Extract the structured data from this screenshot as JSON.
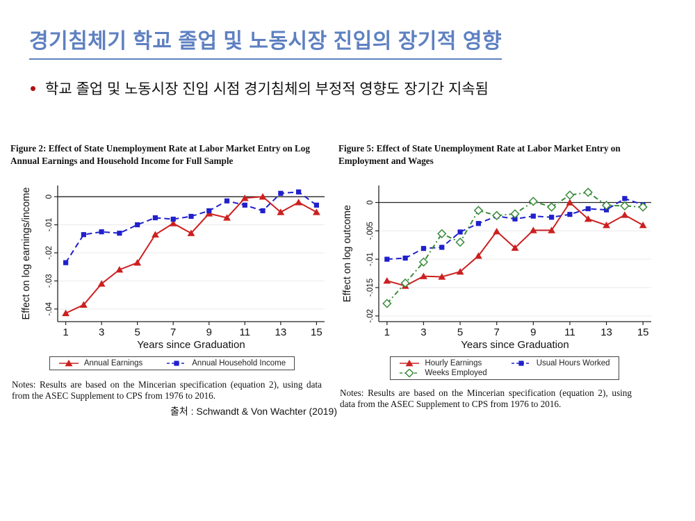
{
  "slide": {
    "title": "경기침체기 학교 졸업 및 노동시장 진입의 장기적 영향",
    "bullet": "학교 졸업 및 노동시장 진입 시점 경기침체의 부정적 영향도 장기간 지속됨",
    "source": "출처 : Schwandt & Von Wachter (2019)"
  },
  "figures": [
    {
      "caption": "Figure 2: Effect of State Unemployment Rate at Labor Market Entry on Log Annual Earnings and Household Income for Full Sample",
      "notes": "Notes:  Results are based on the Mincerian specification (equation 2), using data from the ASEC Supplement to CPS from 1976 to 2016."
    },
    {
      "caption": "Figure 5: Effect of State Unemployment Rate at Labor Market Entry on Employment and Wages",
      "notes": "Notes:  Results are based on the Mincerian specification (equation 2), using data from the ASEC Supplement to CPS from 1976 to 2016."
    }
  ],
  "chart_data": [
    {
      "type": "line",
      "title": "",
      "xlabel": "Years since Graduation",
      "ylabel": "Effect on log earnings/income",
      "x": [
        1,
        2,
        3,
        4,
        5,
        6,
        7,
        8,
        9,
        10,
        11,
        12,
        13,
        14,
        15
      ],
      "xticks": [
        1,
        3,
        5,
        7,
        9,
        11,
        13,
        15
      ],
      "yticks": [
        0,
        -0.01,
        -0.02,
        -0.03,
        -0.04
      ],
      "ytick_labels": [
        "0",
        "-.01",
        "-.02",
        "-.03",
        "-.04"
      ],
      "ylim": [
        -0.0445,
        0.004
      ],
      "zero_line": true,
      "grid": true,
      "legend_position": "bottom",
      "series": [
        {
          "name": "Annual Earnings",
          "color": "#cc2020",
          "marker": "triangle",
          "dash": "solid",
          "values": [
            -0.0415,
            -0.0385,
            -0.031,
            -0.026,
            -0.0235,
            -0.0135,
            -0.0095,
            -0.013,
            -0.006,
            -0.0075,
            -0.0005,
            0.0,
            -0.0055,
            -0.002,
            -0.0055
          ]
        },
        {
          "name": "Annual Household Income",
          "color": "#2020cc",
          "marker": "square",
          "dash": "dashed",
          "values": [
            -0.0235,
            -0.0135,
            -0.0125,
            -0.013,
            -0.01,
            -0.0075,
            -0.008,
            -0.007,
            -0.005,
            -0.0015,
            -0.003,
            -0.005,
            0.0012,
            0.0017,
            -0.003
          ]
        }
      ]
    },
    {
      "type": "line",
      "title": "",
      "xlabel": "Years since Graduation",
      "ylabel": "Effect on log outcome",
      "x": [
        1,
        2,
        3,
        4,
        5,
        6,
        7,
        8,
        9,
        10,
        11,
        12,
        13,
        14,
        15
      ],
      "xticks": [
        1,
        3,
        5,
        7,
        9,
        11,
        13,
        15
      ],
      "yticks": [
        0,
        -0.005,
        -0.01,
        -0.015,
        -0.02
      ],
      "ytick_labels": [
        "0",
        "-.005",
        "-.01",
        "-.015",
        "-.02"
      ],
      "ylim": [
        -0.021,
        0.003
      ],
      "zero_line": true,
      "grid": true,
      "legend_position": "bottom",
      "series": [
        {
          "name": "Hourly Earnings",
          "color": "#cc2020",
          "marker": "triangle",
          "dash": "solid",
          "values": [
            -0.0138,
            -0.0147,
            -0.013,
            -0.0131,
            -0.0122,
            -0.0094,
            -0.0051,
            -0.008,
            -0.0049,
            -0.0049,
            0.0,
            -0.0029,
            -0.004,
            -0.0022,
            -0.004
          ]
        },
        {
          "name": "Usual Hours Worked",
          "color": "#2020cc",
          "marker": "square",
          "dash": "dashed",
          "values": [
            -0.01,
            -0.0098,
            -0.0081,
            -0.0079,
            -0.0052,
            -0.0037,
            -0.0024,
            -0.0029,
            -0.0024,
            -0.0026,
            -0.0021,
            -0.0011,
            -0.0013,
            0.0007,
            -0.0004
          ]
        },
        {
          "name": "Weeks Employed",
          "color": "#3a8a3a",
          "marker": "diamond-open",
          "dash": "dashdot",
          "values": [
            -0.0178,
            -0.0142,
            -0.0105,
            -0.0055,
            -0.007,
            -0.0014,
            -0.0023,
            -0.002,
            0.0002,
            -0.0008,
            0.0013,
            0.0018,
            -0.0005,
            -0.0006,
            -0.0008
          ]
        }
      ]
    }
  ],
  "colors": {
    "title": "#5e80c1",
    "bullet_marker": "#b01010",
    "text": "#1a1a1a",
    "series_red": "#cc2020",
    "series_blue": "#2020cc",
    "series_green": "#3a8a3a",
    "zero_line": "#222222",
    "gridline": "#e9e9e9"
  }
}
